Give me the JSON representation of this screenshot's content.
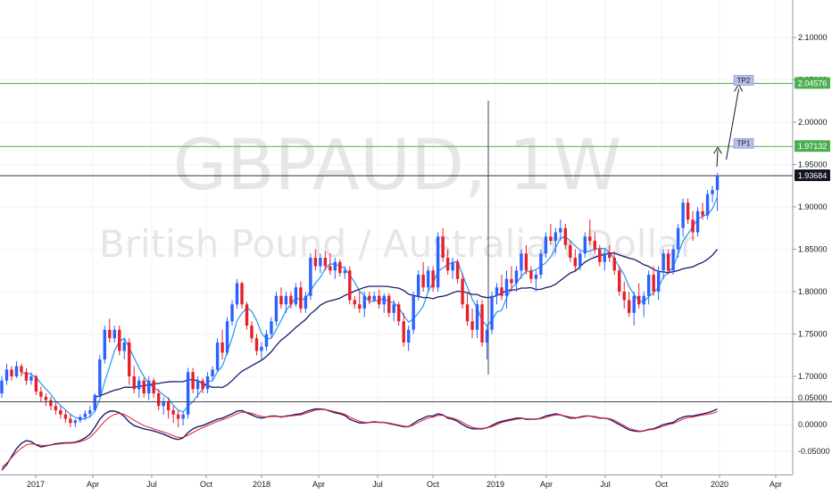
{
  "watermark": {
    "symbol": "GBPAUD, 1W",
    "description": "British Pound / Australian Dollar"
  },
  "colors": {
    "up": "#2962ff",
    "down": "#e5202a",
    "ma_fast": "#2196f3",
    "ma_slow": "#1a1a6e",
    "osc_main": "#1a1a6e",
    "osc_signal": "#e5202a",
    "level": "#4caf50",
    "current": "#333333",
    "current_badge": "#131722",
    "tp_badge": "#b7bee8"
  },
  "chart_data": [
    {
      "type": "candlestick",
      "title": "",
      "x_tick_labels": [
        "2017",
        "Apr",
        "Jul",
        "Oct",
        "2018",
        "Apr",
        "Jul",
        "Oct",
        "2019",
        "Apr",
        "Jul",
        "Oct",
        "2020",
        "Apr"
      ],
      "y_tick_labels": [
        "1.70000",
        "1.75000",
        "1.80000",
        "1.85000",
        "1.90000",
        "1.95000",
        "2.00000",
        "2.05000",
        "2.10000"
      ],
      "ylim": [
        1.67,
        2.12
      ],
      "current_price": "1.93684",
      "levels": [
        {
          "name": "TP1",
          "value": "1.97132"
        },
        {
          "name": "TP2",
          "value": "2.04576"
        }
      ],
      "candles": [
        [
          1.68,
          1.7,
          1.675,
          1.695
        ],
        [
          1.695,
          1.715,
          1.69,
          1.708
        ],
        [
          1.708,
          1.712,
          1.695,
          1.7
        ],
        [
          1.7,
          1.718,
          1.698,
          1.712
        ],
        [
          1.712,
          1.715,
          1.7,
          1.705
        ],
        [
          1.705,
          1.71,
          1.69,
          1.695
        ],
        [
          1.695,
          1.705,
          1.69,
          1.7
        ],
        [
          1.7,
          1.702,
          1.678,
          1.682
        ],
        [
          1.682,
          1.688,
          1.67,
          1.676
        ],
        [
          1.676,
          1.68,
          1.665,
          1.672
        ],
        [
          1.672,
          1.676,
          1.66,
          1.665
        ],
        [
          1.665,
          1.67,
          1.655,
          1.66
        ],
        [
          1.66,
          1.665,
          1.65,
          1.655
        ],
        [
          1.655,
          1.66,
          1.645,
          1.65
        ],
        [
          1.65,
          1.655,
          1.64,
          1.645
        ],
        [
          1.645,
          1.65,
          1.64,
          1.648
        ],
        [
          1.648,
          1.655,
          1.645,
          1.652
        ],
        [
          1.652,
          1.66,
          1.648,
          1.656
        ],
        [
          1.656,
          1.665,
          1.652,
          1.66
        ],
        [
          1.66,
          1.68,
          1.658,
          1.678
        ],
        [
          1.678,
          1.725,
          1.675,
          1.72
        ],
        [
          1.72,
          1.76,
          1.715,
          1.755
        ],
        [
          1.755,
          1.768,
          1.74,
          1.745
        ],
        [
          1.745,
          1.76,
          1.74,
          1.755
        ],
        [
          1.755,
          1.76,
          1.725,
          1.73
        ],
        [
          1.73,
          1.745,
          1.72,
          1.74
        ],
        [
          1.74,
          1.745,
          1.69,
          1.7
        ],
        [
          1.7,
          1.712,
          1.68,
          1.685
        ],
        [
          1.685,
          1.7,
          1.675,
          1.695
        ],
        [
          1.695,
          1.698,
          1.675,
          1.68
        ],
        [
          1.68,
          1.7,
          1.672,
          1.695
        ],
        [
          1.695,
          1.698,
          1.675,
          1.68
        ],
        [
          1.68,
          1.685,
          1.66,
          1.665
        ],
        [
          1.665,
          1.675,
          1.655,
          1.67
        ],
        [
          1.67,
          1.675,
          1.65,
          1.66
        ],
        [
          1.66,
          1.665,
          1.645,
          1.655
        ],
        [
          1.655,
          1.66,
          1.64,
          1.65
        ],
        [
          1.65,
          1.658,
          1.642,
          1.655
        ],
        [
          1.655,
          1.71,
          1.65,
          1.705
        ],
        [
          1.705,
          1.71,
          1.68,
          1.685
        ],
        [
          1.685,
          1.7,
          1.675,
          1.695
        ],
        [
          1.695,
          1.698,
          1.68,
          1.685
        ],
        [
          1.685,
          1.705,
          1.68,
          1.7
        ],
        [
          1.7,
          1.712,
          1.695,
          1.708
        ],
        [
          1.708,
          1.745,
          1.705,
          1.74
        ],
        [
          1.74,
          1.755,
          1.72,
          1.728
        ],
        [
          1.728,
          1.77,
          1.725,
          1.765
        ],
        [
          1.765,
          1.79,
          1.76,
          1.785
        ],
        [
          1.785,
          1.815,
          1.78,
          1.81
        ],
        [
          1.81,
          1.812,
          1.78,
          1.785
        ],
        [
          1.785,
          1.788,
          1.755,
          1.76
        ],
        [
          1.76,
          1.765,
          1.74,
          1.745
        ],
        [
          1.745,
          1.75,
          1.725,
          1.73
        ],
        [
          1.73,
          1.74,
          1.72,
          1.735
        ],
        [
          1.735,
          1.755,
          1.73,
          1.75
        ],
        [
          1.75,
          1.77,
          1.745,
          1.765
        ],
        [
          1.765,
          1.8,
          1.76,
          1.795
        ],
        [
          1.795,
          1.805,
          1.78,
          1.785
        ],
        [
          1.785,
          1.8,
          1.775,
          1.795
        ],
        [
          1.795,
          1.8,
          1.78,
          1.785
        ],
        [
          1.785,
          1.81,
          1.782,
          1.805
        ],
        [
          1.805,
          1.812,
          1.775,
          1.78
        ],
        [
          1.78,
          1.8,
          1.775,
          1.795
        ],
        [
          1.795,
          1.845,
          1.79,
          1.84
        ],
        [
          1.84,
          1.85,
          1.825,
          1.83
        ],
        [
          1.83,
          1.845,
          1.822,
          1.84
        ],
        [
          1.84,
          1.848,
          1.825,
          1.83
        ],
        [
          1.83,
          1.845,
          1.82,
          1.825
        ],
        [
          1.825,
          1.84,
          1.815,
          1.835
        ],
        [
          1.835,
          1.838,
          1.818,
          1.822
        ],
        [
          1.822,
          1.83,
          1.815,
          1.825
        ],
        [
          1.825,
          1.83,
          1.785,
          1.79
        ],
        [
          1.79,
          1.795,
          1.78,
          1.785
        ],
        [
          1.785,
          1.8,
          1.775,
          1.78
        ],
        [
          1.78,
          1.8,
          1.77,
          1.795
        ],
        [
          1.795,
          1.8,
          1.785,
          1.79
        ],
        [
          1.79,
          1.8,
          1.788,
          1.795
        ],
        [
          1.795,
          1.802,
          1.78,
          1.785
        ],
        [
          1.785,
          1.798,
          1.775,
          1.795
        ],
        [
          1.795,
          1.798,
          1.77,
          1.775
        ],
        [
          1.775,
          1.79,
          1.765,
          1.785
        ],
        [
          1.785,
          1.788,
          1.76,
          1.765
        ],
        [
          1.765,
          1.775,
          1.735,
          1.74
        ],
        [
          1.74,
          1.76,
          1.73,
          1.755
        ],
        [
          1.755,
          1.8,
          1.75,
          1.795
        ],
        [
          1.795,
          1.825,
          1.79,
          1.82
        ],
        [
          1.82,
          1.835,
          1.8,
          1.805
        ],
        [
          1.805,
          1.83,
          1.8,
          1.825
        ],
        [
          1.825,
          1.83,
          1.8,
          1.805
        ],
        [
          1.805,
          1.87,
          1.8,
          1.865
        ],
        [
          1.865,
          1.875,
          1.835,
          1.84
        ],
        [
          1.84,
          1.85,
          1.82,
          1.825
        ],
        [
          1.825,
          1.84,
          1.815,
          1.835
        ],
        [
          1.835,
          1.838,
          1.81,
          1.815
        ],
        [
          1.815,
          1.822,
          1.78,
          1.785
        ],
        [
          1.785,
          1.8,
          1.76,
          1.765
        ],
        [
          1.765,
          1.78,
          1.745,
          1.755
        ],
        [
          1.755,
          1.79,
          1.745,
          1.785
        ],
        [
          1.785,
          1.79,
          1.735,
          1.74
        ],
        [
          1.74,
          1.76,
          1.72,
          1.755
        ],
        [
          1.755,
          1.8,
          1.75,
          1.795
        ],
        [
          1.795,
          1.81,
          1.785,
          1.805
        ],
        [
          1.805,
          1.82,
          1.79,
          1.795
        ],
        [
          1.795,
          1.825,
          1.78,
          1.815
        ],
        [
          1.815,
          1.83,
          1.8,
          1.81
        ],
        [
          1.81,
          1.83,
          1.8,
          1.825
        ],
        [
          1.825,
          1.85,
          1.815,
          1.845
        ],
        [
          1.845,
          1.855,
          1.82,
          1.825
        ],
        [
          1.825,
          1.83,
          1.81,
          1.815
        ],
        [
          1.815,
          1.825,
          1.8,
          1.82
        ],
        [
          1.82,
          1.85,
          1.815,
          1.845
        ],
        [
          1.845,
          1.87,
          1.84,
          1.865
        ],
        [
          1.865,
          1.88,
          1.855,
          1.86
        ],
        [
          1.86,
          1.875,
          1.845,
          1.87
        ],
        [
          1.87,
          1.885,
          1.86,
          1.875
        ],
        [
          1.875,
          1.88,
          1.85,
          1.855
        ],
        [
          1.855,
          1.86,
          1.835,
          1.84
        ],
        [
          1.84,
          1.85,
          1.825,
          1.83
        ],
        [
          1.83,
          1.848,
          1.825,
          1.845
        ],
        [
          1.845,
          1.87,
          1.84,
          1.865
        ],
        [
          1.865,
          1.885,
          1.855,
          1.86
        ],
        [
          1.86,
          1.87,
          1.845,
          1.85
        ],
        [
          1.85,
          1.855,
          1.83,
          1.835
        ],
        [
          1.835,
          1.85,
          1.825,
          1.845
        ],
        [
          1.845,
          1.855,
          1.835,
          1.84
        ],
        [
          1.84,
          1.848,
          1.82,
          1.825
        ],
        [
          1.825,
          1.83,
          1.795,
          1.8
        ],
        [
          1.8,
          1.812,
          1.78,
          1.79
        ],
        [
          1.79,
          1.8,
          1.77,
          1.775
        ],
        [
          1.775,
          1.8,
          1.76,
          1.795
        ],
        [
          1.795,
          1.81,
          1.78,
          1.785
        ],
        [
          1.785,
          1.8,
          1.77,
          1.795
        ],
        [
          1.795,
          1.825,
          1.785,
          1.82
        ],
        [
          1.82,
          1.83,
          1.795,
          1.8
        ],
        [
          1.8,
          1.83,
          1.79,
          1.825
        ],
        [
          1.825,
          1.85,
          1.815,
          1.845
        ],
        [
          1.845,
          1.85,
          1.82,
          1.825
        ],
        [
          1.825,
          1.855,
          1.82,
          1.85
        ],
        [
          1.85,
          1.88,
          1.84,
          1.875
        ],
        [
          1.875,
          1.91,
          1.865,
          1.905
        ],
        [
          1.905,
          1.91,
          1.88,
          1.885
        ],
        [
          1.885,
          1.895,
          1.86,
          1.87
        ],
        [
          1.87,
          1.9,
          1.865,
          1.895
        ],
        [
          1.895,
          1.905,
          1.885,
          1.89
        ],
        [
          1.89,
          1.92,
          1.885,
          1.915
        ],
        [
          1.915,
          1.925,
          1.905,
          1.92
        ],
        [
          1.92,
          1.94,
          1.895,
          1.937
        ]
      ]
    },
    {
      "type": "line",
      "title": "",
      "y_tick_labels": [
        "-0.05000",
        "0.00000",
        "0.05000"
      ],
      "ylim": [
        -0.085,
        0.045
      ],
      "series": [
        {
          "values": [
            -0.085,
            -0.075,
            -0.06,
            -0.045,
            -0.035,
            -0.03,
            -0.032,
            -0.038,
            -0.042,
            -0.04,
            -0.038,
            -0.036,
            -0.035,
            -0.034,
            -0.034,
            -0.033,
            -0.03,
            -0.025,
            -0.018,
            -0.005,
            0.01,
            0.02,
            0.025,
            0.025,
            0.022,
            0.015,
            0.005,
            -0.002,
            -0.005,
            -0.008,
            -0.01,
            -0.012,
            -0.015,
            -0.018,
            -0.022,
            -0.026,
            -0.028,
            -0.025,
            -0.015,
            -0.008,
            -0.004,
            -0.002,
            0.002,
            0.006,
            0.01,
            0.012,
            0.016,
            0.02,
            0.025,
            0.026,
            0.022,
            0.018,
            0.014,
            0.012,
            0.014,
            0.016,
            0.016,
            0.014,
            0.016,
            0.017,
            0.019,
            0.02,
            0.024,
            0.027,
            0.029,
            0.029,
            0.028,
            0.025,
            0.022,
            0.02,
            0.017,
            0.01,
            0.006,
            0.003,
            0.003,
            0.004,
            0.005,
            0.004,
            0.004,
            0.002,
            0.0,
            -0.002,
            -0.004,
            -0.004,
            0.002,
            0.008,
            0.012,
            0.016,
            0.016,
            0.02,
            0.018,
            0.012,
            0.01,
            0.006,
            0.0,
            -0.005,
            -0.008,
            -0.008,
            -0.008,
            -0.006,
            -0.002,
            0.003,
            0.006,
            0.008,
            0.01,
            0.012,
            0.012,
            0.01,
            0.01,
            0.01,
            0.012,
            0.016,
            0.018,
            0.02,
            0.018,
            0.015,
            0.012,
            0.012,
            0.014,
            0.016,
            0.016,
            0.014,
            0.012,
            0.012,
            0.01,
            0.005,
            0.0,
            -0.005,
            -0.01,
            -0.012,
            -0.013,
            -0.012,
            -0.009,
            -0.008,
            -0.004,
            0.0,
            0.002,
            0.004,
            0.01,
            0.014,
            0.016,
            0.016,
            0.018,
            0.02,
            0.022,
            0.025,
            0.029
          ]
        },
        {
          "values": [
            -0.08,
            -0.072,
            -0.062,
            -0.052,
            -0.044,
            -0.038,
            -0.036,
            -0.037,
            -0.039,
            -0.039,
            -0.038,
            -0.037,
            -0.036,
            -0.035,
            -0.035,
            -0.034,
            -0.032,
            -0.029,
            -0.024,
            -0.015,
            -0.004,
            0.006,
            0.014,
            0.019,
            0.021,
            0.019,
            0.014,
            0.008,
            0.003,
            -0.002,
            -0.005,
            -0.008,
            -0.011,
            -0.014,
            -0.017,
            -0.021,
            -0.024,
            -0.024,
            -0.02,
            -0.015,
            -0.01,
            -0.006,
            -0.002,
            0.002,
            0.006,
            0.009,
            0.012,
            0.016,
            0.02,
            0.023,
            0.023,
            0.021,
            0.018,
            0.015,
            0.014,
            0.015,
            0.015,
            0.015,
            0.015,
            0.016,
            0.017,
            0.018,
            0.021,
            0.024,
            0.027,
            0.028,
            0.028,
            0.026,
            0.024,
            0.022,
            0.019,
            0.014,
            0.01,
            0.006,
            0.004,
            0.004,
            0.004,
            0.004,
            0.004,
            0.003,
            0.001,
            -0.001,
            -0.003,
            -0.004,
            -0.001,
            0.004,
            0.008,
            0.012,
            0.014,
            0.017,
            0.017,
            0.014,
            0.012,
            0.009,
            0.004,
            -0.001,
            -0.005,
            -0.007,
            -0.007,
            -0.006,
            -0.004,
            0.0,
            0.004,
            0.006,
            0.008,
            0.01,
            0.011,
            0.011,
            0.01,
            0.01,
            0.011,
            0.013,
            0.016,
            0.018,
            0.018,
            0.016,
            0.014,
            0.013,
            0.013,
            0.015,
            0.016,
            0.015,
            0.013,
            0.012,
            0.011,
            0.008,
            0.003,
            -0.002,
            -0.007,
            -0.01,
            -0.012,
            -0.012,
            -0.01,
            -0.009,
            -0.006,
            -0.003,
            0.0,
            0.002,
            0.006,
            0.01,
            0.013,
            0.014,
            0.016,
            0.018,
            0.019,
            0.021,
            0.024
          ]
        }
      ]
    }
  ]
}
